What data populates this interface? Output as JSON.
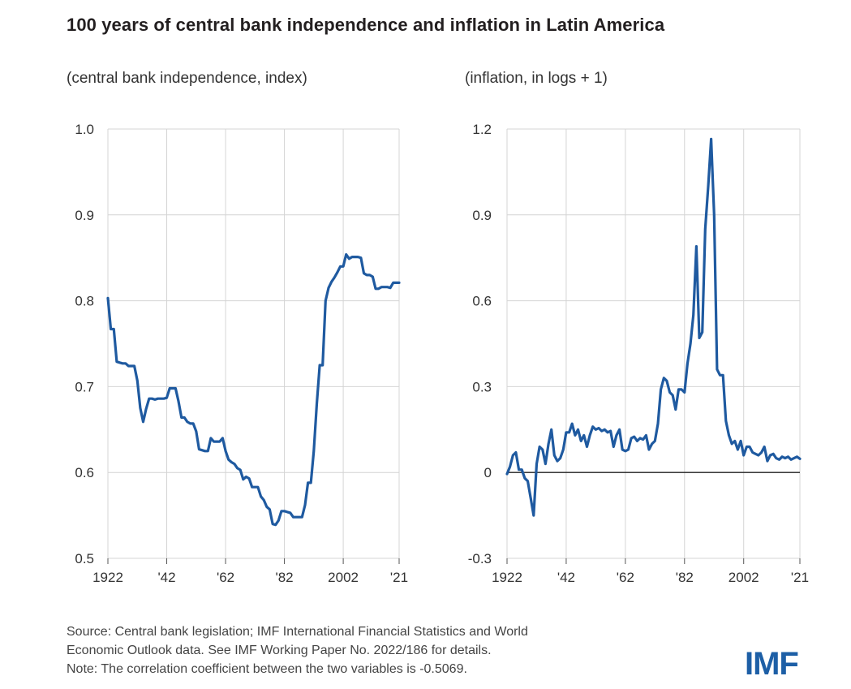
{
  "title": "100 years of central bank independence and inflation in Latin America",
  "source": {
    "line1": "Source: Central bank legislation; IMF International Financial Statistics and World",
    "line2": "Economic Outlook data. See IMF Working Paper No. 2022/186 for details.",
    "line3": "Note: The correlation coefficient between the two variables is -0.5069."
  },
  "logo": "IMF",
  "colors": {
    "line": "#1f5aa0",
    "grid": "#d4d4d4",
    "zero_line": "#222222"
  },
  "chart_data": [
    {
      "type": "line",
      "subtitle": "(central bank independence, index)",
      "ylim": [
        0.5,
        1.0
      ],
      "yticks": [
        0.5,
        0.6,
        0.7,
        0.8,
        0.9,
        1.0
      ],
      "ytick_labels": [
        "0.5",
        "0.6",
        "0.7",
        "0.8",
        "0.9",
        "1.0"
      ],
      "xlim": [
        1922,
        2021
      ],
      "xticks": [
        1922,
        1942,
        1962,
        1982,
        2002,
        2021
      ],
      "xtick_labels": [
        "1922",
        "'42",
        "'62",
        "'82",
        "2002",
        "'21"
      ],
      "series": [
        {
          "name": "Central bank independence index",
          "x": [
            1922,
            1923,
            1924,
            1925,
            1926,
            1927,
            1928,
            1929,
            1930,
            1931,
            1932,
            1933,
            1934,
            1935,
            1936,
            1937,
            1938,
            1939,
            1940,
            1941,
            1942,
            1943,
            1944,
            1945,
            1946,
            1947,
            1948,
            1949,
            1950,
            1951,
            1952,
            1953,
            1954,
            1955,
            1956,
            1957,
            1958,
            1959,
            1960,
            1961,
            1962,
            1963,
            1964,
            1965,
            1966,
            1967,
            1968,
            1969,
            1970,
            1971,
            1972,
            1973,
            1974,
            1975,
            1976,
            1977,
            1978,
            1979,
            1980,
            1981,
            1982,
            1983,
            1984,
            1985,
            1986,
            1987,
            1988,
            1989,
            1990,
            1991,
            1992,
            1993,
            1994,
            1995,
            1996,
            1997,
            1998,
            1999,
            2000,
            2001,
            2002,
            2003,
            2004,
            2005,
            2006,
            2007,
            2008,
            2009,
            2010,
            2011,
            2012,
            2013,
            2014,
            2015,
            2016,
            2017,
            2018,
            2019,
            2020,
            2021
          ],
          "values": [
            0.803,
            0.767,
            0.767,
            0.729,
            0.728,
            0.727,
            0.727,
            0.724,
            0.724,
            0.724,
            0.707,
            0.675,
            0.659,
            0.674,
            0.686,
            0.686,
            0.685,
            0.686,
            0.686,
            0.686,
            0.687,
            0.698,
            0.698,
            0.698,
            0.683,
            0.664,
            0.664,
            0.659,
            0.657,
            0.657,
            0.648,
            0.627,
            0.626,
            0.625,
            0.625,
            0.64,
            0.636,
            0.636,
            0.636,
            0.64,
            0.625,
            0.615,
            0.612,
            0.61,
            0.605,
            0.603,
            0.592,
            0.595,
            0.593,
            0.583,
            0.583,
            0.583,
            0.572,
            0.568,
            0.56,
            0.557,
            0.54,
            0.539,
            0.544,
            0.555,
            0.555,
            0.554,
            0.553,
            0.548,
            0.548,
            0.548,
            0.548,
            0.562,
            0.588,
            0.588,
            0.625,
            0.68,
            0.725,
            0.725,
            0.8,
            0.815,
            0.822,
            0.827,
            0.833,
            0.84,
            0.84,
            0.854,
            0.849,
            0.851,
            0.851,
            0.851,
            0.85,
            0.832,
            0.83,
            0.83,
            0.828,
            0.814,
            0.814,
            0.816,
            0.816,
            0.816,
            0.815,
            0.821,
            0.821,
            0.821
          ]
        }
      ]
    },
    {
      "type": "line",
      "subtitle": "(inflation, in logs + 1)",
      "ylim": [
        -0.3,
        1.2
      ],
      "yticks": [
        -0.3,
        0,
        0.3,
        0.6,
        0.9,
        1.2
      ],
      "ytick_labels": [
        "-0.3",
        "0",
        "0.3",
        "0.6",
        "0.9",
        "1.2"
      ],
      "xlim": [
        1922,
        2021
      ],
      "xticks": [
        1922,
        1942,
        1962,
        1982,
        2002,
        2021
      ],
      "xtick_labels": [
        "1922",
        "'42",
        "'62",
        "'82",
        "2002",
        "'21"
      ],
      "zero_line": 0,
      "series": [
        {
          "name": "Inflation (in logs + 1)",
          "x": [
            1922,
            1923,
            1924,
            1925,
            1926,
            1927,
            1928,
            1929,
            1930,
            1931,
            1932,
            1933,
            1934,
            1935,
            1936,
            1937,
            1938,
            1939,
            1940,
            1941,
            1942,
            1943,
            1944,
            1945,
            1946,
            1947,
            1948,
            1949,
            1950,
            1951,
            1952,
            1953,
            1954,
            1955,
            1956,
            1957,
            1958,
            1959,
            1960,
            1961,
            1962,
            1963,
            1964,
            1965,
            1966,
            1967,
            1968,
            1969,
            1970,
            1971,
            1972,
            1973,
            1974,
            1975,
            1976,
            1977,
            1978,
            1979,
            1980,
            1981,
            1982,
            1983,
            1984,
            1985,
            1986,
            1987,
            1988,
            1989,
            1990,
            1991,
            1992,
            1993,
            1994,
            1995,
            1996,
            1997,
            1998,
            1999,
            2000,
            2001,
            2002,
            2003,
            2004,
            2005,
            2006,
            2007,
            2008,
            2009,
            2010,
            2011,
            2012,
            2013,
            2014,
            2015,
            2016,
            2017,
            2018,
            2019,
            2020,
            2021
          ],
          "values": [
            -0.005,
            0.02,
            0.06,
            0.07,
            0.01,
            0.01,
            -0.02,
            -0.03,
            -0.09,
            -0.15,
            0.03,
            0.09,
            0.08,
            0.03,
            0.1,
            0.15,
            0.06,
            0.04,
            0.05,
            0.08,
            0.14,
            0.14,
            0.17,
            0.13,
            0.15,
            0.11,
            0.13,
            0.09,
            0.13,
            0.16,
            0.15,
            0.155,
            0.145,
            0.15,
            0.14,
            0.145,
            0.09,
            0.13,
            0.15,
            0.08,
            0.075,
            0.08,
            0.12,
            0.125,
            0.11,
            0.12,
            0.115,
            0.13,
            0.08,
            0.1,
            0.11,
            0.17,
            0.29,
            0.33,
            0.32,
            0.28,
            0.27,
            0.22,
            0.29,
            0.29,
            0.28,
            0.38,
            0.45,
            0.55,
            0.79,
            0.47,
            0.49,
            0.85,
            1.0,
            1.165,
            0.9,
            0.36,
            0.34,
            0.34,
            0.18,
            0.13,
            0.1,
            0.11,
            0.08,
            0.11,
            0.06,
            0.09,
            0.09,
            0.07,
            0.065,
            0.06,
            0.07,
            0.09,
            0.04,
            0.06,
            0.065,
            0.05,
            0.045,
            0.055,
            0.05,
            0.055,
            0.045,
            0.05,
            0.055,
            0.048
          ]
        }
      ]
    }
  ]
}
